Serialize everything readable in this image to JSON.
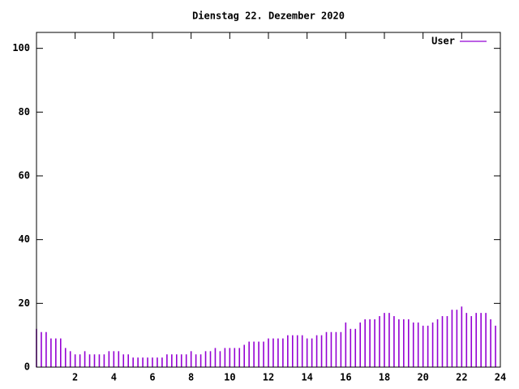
{
  "chart_data": {
    "type": "impulse",
    "title": "Dienstag 22. Dezember 2020",
    "x": [
      0,
      0.25,
      0.5,
      0.75,
      1,
      1.25,
      1.5,
      1.75,
      2,
      2.25,
      2.5,
      2.75,
      3,
      3.25,
      3.5,
      3.75,
      4,
      4.25,
      4.5,
      4.75,
      5,
      5.25,
      5.5,
      5.75,
      6,
      6.25,
      6.5,
      6.75,
      7,
      7.25,
      7.5,
      7.75,
      8,
      8.25,
      8.5,
      8.75,
      9,
      9.25,
      9.5,
      9.75,
      10,
      10.25,
      10.5,
      10.75,
      11,
      11.25,
      11.5,
      11.75,
      12,
      12.25,
      12.5,
      12.75,
      13,
      13.25,
      13.5,
      13.75,
      14,
      14.25,
      14.5,
      14.75,
      15,
      15.25,
      15.5,
      15.75,
      16,
      16.25,
      16.5,
      16.75,
      17,
      17.25,
      17.5,
      17.75,
      18,
      18.25,
      18.5,
      18.75,
      19,
      19.25,
      19.5,
      19.75,
      20,
      20.25,
      20.5,
      20.75,
      21,
      21.25,
      21.5,
      21.75,
      22,
      22.25,
      22.5,
      22.75,
      23,
      23.25,
      23.5,
      23.75
    ],
    "series": [
      {
        "name": "User",
        "color": "#9400d3",
        "values": [
          12,
          11,
          11,
          9,
          9,
          9,
          6,
          5,
          4,
          4,
          5,
          4,
          4,
          4,
          4,
          5,
          5,
          5,
          4,
          4,
          3,
          3,
          3,
          3,
          3,
          3,
          3,
          4,
          4,
          4,
          4,
          4,
          5,
          4,
          4,
          5,
          5,
          6,
          5,
          6,
          6,
          6,
          6,
          7,
          8,
          8,
          8,
          8,
          9,
          9,
          9,
          9,
          10,
          10,
          10,
          10,
          9,
          9,
          10,
          10,
          11,
          11,
          11,
          11,
          14,
          12,
          12,
          14,
          15,
          15,
          15,
          16,
          17,
          17,
          16,
          15,
          15,
          15,
          14,
          14,
          13,
          13,
          14,
          15,
          16,
          16,
          18,
          18,
          19,
          17,
          16,
          17,
          17,
          17,
          15,
          13
        ]
      }
    ],
    "xlim": [
      0,
      24
    ],
    "xticks": [
      2,
      4,
      6,
      8,
      10,
      12,
      14,
      16,
      18,
      20,
      22,
      24
    ],
    "ylim": [
      0,
      105
    ],
    "yticks": [
      0,
      20,
      40,
      60,
      80,
      100
    ],
    "legend": "top-right"
  }
}
